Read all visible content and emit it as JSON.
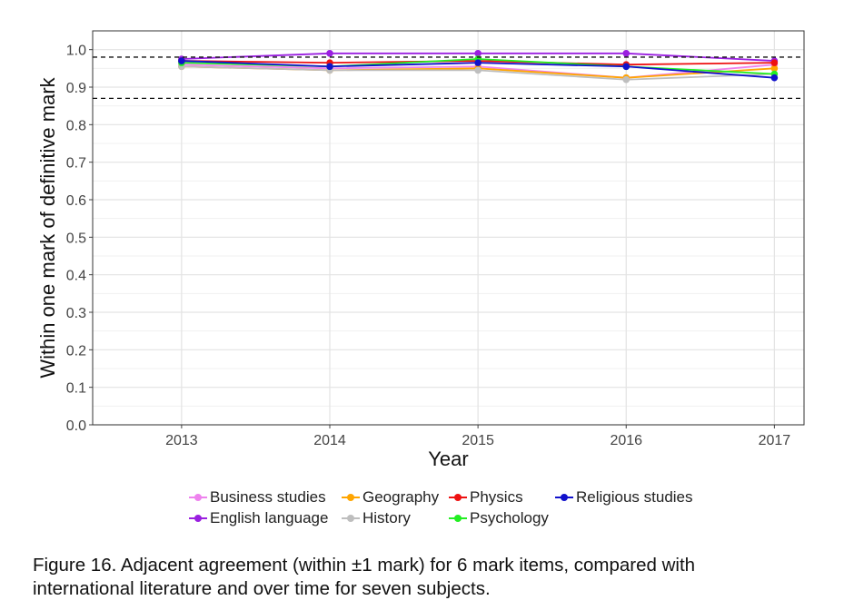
{
  "chart_data": {
    "type": "line",
    "xlabel": "Year",
    "ylabel": "Within one mark of definitive mark",
    "categories": [
      "2013",
      "2014",
      "2015",
      "2016",
      "2017"
    ],
    "ylim": [
      0.0,
      1.05
    ],
    "yticks": [
      "0.0",
      "0.1",
      "0.2",
      "0.3",
      "0.4",
      "0.5",
      "0.6",
      "0.7",
      "0.8",
      "0.9",
      "1.0"
    ],
    "grid": true,
    "reference_lines": [
      0.98,
      0.87
    ],
    "legend_position": "bottom",
    "series": [
      {
        "name": "Business studies",
        "color": "#ee82ee",
        "values": [
          0.96,
          0.95,
          0.955,
          0.925,
          0.96
        ]
      },
      {
        "name": "English language",
        "color": "#9a1fe0",
        "values": [
          0.975,
          0.99,
          0.99,
          0.99,
          0.97
        ]
      },
      {
        "name": "Geography",
        "color": "#ffa500",
        "values": [
          0.955,
          0.945,
          0.95,
          0.925,
          0.95
        ]
      },
      {
        "name": "History",
        "color": "#bebebe",
        "values": [
          0.955,
          0.945,
          0.945,
          0.92,
          0.935
        ]
      },
      {
        "name": "Physics",
        "color": "#ee1111",
        "values": [
          0.97,
          0.965,
          0.97,
          0.96,
          0.965
        ]
      },
      {
        "name": "Psychology",
        "color": "#22ee22",
        "values": [
          0.965,
          0.955,
          0.975,
          0.955,
          0.935
        ]
      },
      {
        "name": "Religious studies",
        "color": "#1111cc",
        "values": [
          0.97,
          0.955,
          0.965,
          0.955,
          0.925
        ]
      }
    ]
  },
  "caption": {
    "line1": "Figure 16. Adjacent agreement (within ±1 mark) for 6 mark items, compared with",
    "line2": "international literature and over time for seven subjects."
  }
}
